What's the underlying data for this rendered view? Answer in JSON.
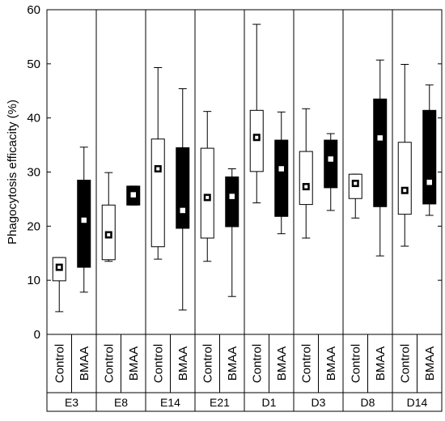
{
  "chart_data": {
    "type": "box",
    "ylabel": "Phagocytosis efficacity (%)",
    "ylim": [
      0,
      60
    ],
    "yticks": [
      0,
      10,
      20,
      30,
      40,
      50,
      60
    ],
    "grid": false,
    "colors": {
      "control_fill": "#ffffff",
      "bmaa_fill": "#000000",
      "stroke": "#000000"
    },
    "groups": [
      {
        "name": "E3",
        "boxes": [
          {
            "label": "Control",
            "whisker_low": 4.2,
            "q1": 9.9,
            "median": 12.4,
            "q3": 14.2,
            "whisker_high": 14.2
          },
          {
            "label": "BMAA",
            "whisker_low": 7.8,
            "q1": 12.4,
            "median": 21.1,
            "q3": 28.5,
            "whisker_high": 34.6
          }
        ]
      },
      {
        "name": "E8",
        "boxes": [
          {
            "label": "Control",
            "whisker_low": 13.5,
            "q1": 13.8,
            "median": 18.4,
            "q3": 23.9,
            "whisker_high": 29.9
          },
          {
            "label": "BMAA",
            "whisker_low": 23.9,
            "q1": 23.9,
            "median": 25.8,
            "q3": 27.4,
            "whisker_high": 27.4
          }
        ]
      },
      {
        "name": "E14",
        "boxes": [
          {
            "label": "Control",
            "whisker_low": 13.9,
            "q1": 16.2,
            "median": 30.6,
            "q3": 36.1,
            "whisker_high": 49.3
          },
          {
            "label": "BMAA",
            "whisker_low": 4.5,
            "q1": 19.6,
            "median": 22.9,
            "q3": 34.5,
            "whisker_high": 45.4
          }
        ]
      },
      {
        "name": "E21",
        "boxes": [
          {
            "label": "Control",
            "whisker_low": 13.5,
            "q1": 17.8,
            "median": 25.3,
            "q3": 34.4,
            "whisker_high": 41.2
          },
          {
            "label": "BMAA",
            "whisker_low": 7.0,
            "q1": 19.9,
            "median": 25.5,
            "q3": 29.1,
            "whisker_high": 30.6
          }
        ]
      },
      {
        "name": "D1",
        "boxes": [
          {
            "label": "Control",
            "whisker_low": 24.3,
            "q1": 30.1,
            "median": 36.4,
            "q3": 41.4,
            "whisker_high": 57.3
          },
          {
            "label": "BMAA",
            "whisker_low": 18.6,
            "q1": 21.8,
            "median": 30.6,
            "q3": 35.9,
            "whisker_high": 41.1
          }
        ]
      },
      {
        "name": "D3",
        "boxes": [
          {
            "label": "Control",
            "whisker_low": 17.8,
            "q1": 24.0,
            "median": 27.3,
            "q3": 33.8,
            "whisker_high": 41.7
          },
          {
            "label": "BMAA",
            "whisker_low": 22.9,
            "q1": 27.1,
            "median": 32.4,
            "q3": 35.9,
            "whisker_high": 37.1
          }
        ]
      },
      {
        "name": "D8",
        "boxes": [
          {
            "label": "Control",
            "whisker_low": 21.5,
            "q1": 25.1,
            "median": 27.9,
            "q3": 29.6,
            "whisker_high": 29.6
          },
          {
            "label": "BMAA",
            "whisker_low": 14.5,
            "q1": 23.6,
            "median": 36.3,
            "q3": 43.5,
            "whisker_high": 50.7
          }
        ]
      },
      {
        "name": "D14",
        "boxes": [
          {
            "label": "Control",
            "whisker_low": 16.3,
            "q1": 22.2,
            "median": 26.6,
            "q3": 35.5,
            "whisker_high": 49.9
          },
          {
            "label": "BMAA",
            "whisker_low": 22.0,
            "q1": 24.1,
            "median": 28.1,
            "q3": 41.4,
            "whisker_high": 46.1
          }
        ]
      }
    ]
  }
}
